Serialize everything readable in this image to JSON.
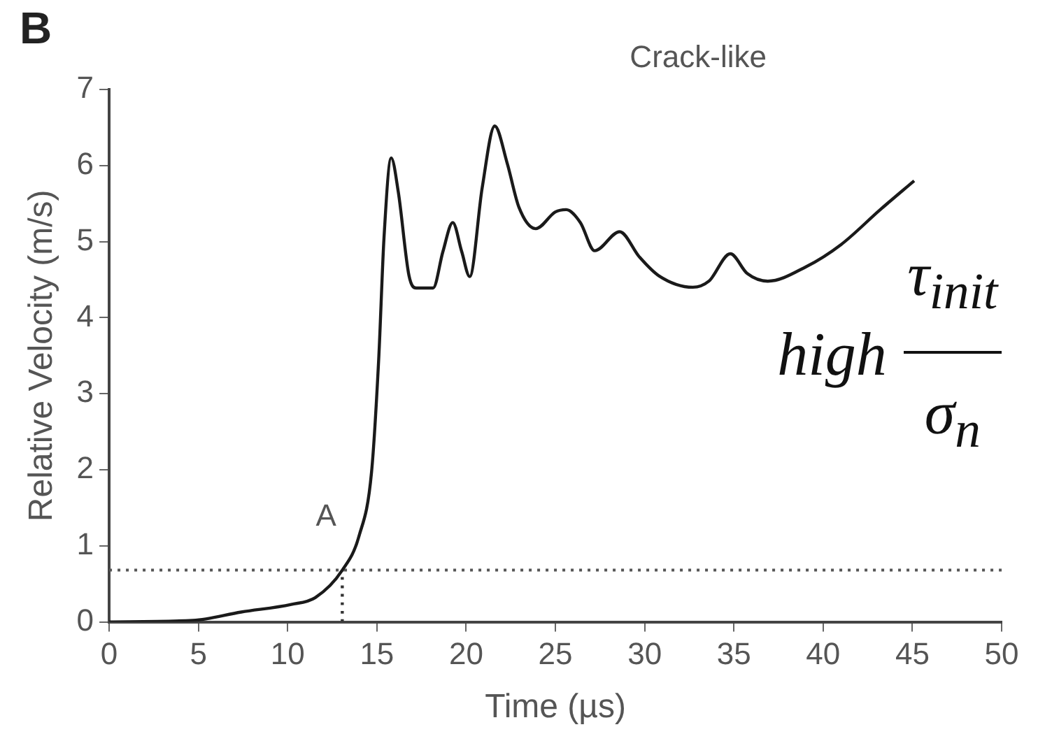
{
  "chart_data": {
    "type": "line",
    "title": "B",
    "xlabel": "Time (µs)",
    "ylabel": "Relative Velocity (m/s)",
    "xlim": [
      0,
      50
    ],
    "xticks": [
      0,
      5,
      10,
      15,
      20,
      25,
      30,
      35,
      40,
      45,
      50
    ],
    "ylim": [
      0,
      7
    ],
    "yticks": [
      0,
      1,
      2,
      3,
      4,
      5,
      6,
      7
    ],
    "grid": false,
    "legend": false,
    "marker": "none",
    "series": [
      {
        "color": "#1a1a1a",
        "line_style": "solid",
        "x": [
          0,
          4.7,
          7.4,
          10.2,
          11.55,
          13.06,
          14.0,
          14.7,
          15.1,
          15.4,
          15.8,
          16.2,
          16.8,
          17.2,
          18.15,
          18.7,
          19.25,
          19.75,
          20.2,
          20.9,
          21.6,
          22.3,
          22.96,
          23.9,
          25.0,
          25.6,
          26.4,
          27.2,
          28.6,
          29.7,
          30.8,
          32.7,
          33.6,
          34.8,
          35.75,
          36.9,
          39.05,
          41.0,
          43.2,
          45.1
        ],
        "values": [
          0,
          0.02,
          0.13,
          0.23,
          0.32,
          0.68,
          1.13,
          1.97,
          3.45,
          5.06,
          6.1,
          5.65,
          4.55,
          4.39,
          4.39,
          4.87,
          5.25,
          4.87,
          4.54,
          5.71,
          6.52,
          6.03,
          5.45,
          5.17,
          5.39,
          5.42,
          5.25,
          4.88,
          5.13,
          4.8,
          4.55,
          4.4,
          4.48,
          4.84,
          4.58,
          4.48,
          4.67,
          4.96,
          5.42,
          5.8
        ]
      },
      {
        "type": "line",
        "color": "#333333",
        "line_style": "dotted",
        "x": [
          13.06,
          13.06
        ],
        "values": [
          0,
          0.68
        ]
      }
    ],
    "ref_lines": [
      {
        "axis": "y",
        "value": 0.68,
        "color": "#555555",
        "line_style": "dotted"
      }
    ],
    "annotations": [
      "A",
      "Crack-like",
      "high",
      "τ$_{init}$",
      "σ$_{n}$"
    ]
  }
}
